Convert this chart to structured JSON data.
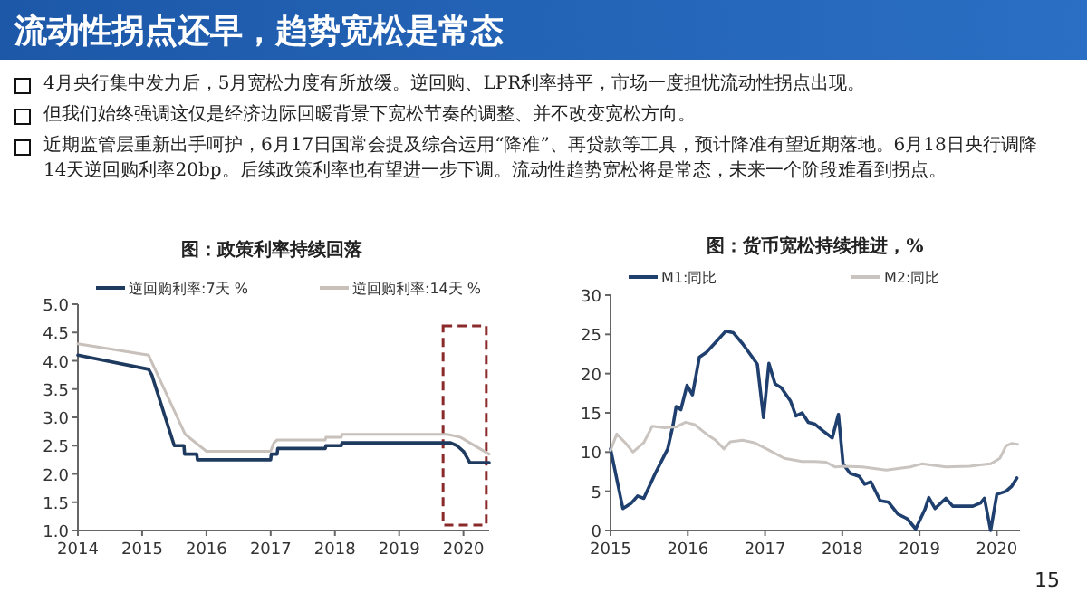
{
  "chart_data": [
    {
      "type": "other",
      "title": "流动性拐点还早，趋势宽松是常态",
      "annotations": [
        "4月央行集中发力后，5月宽松力度有所放缓。逆回购、LPR利率持平，市场一度担忧流动性拐点出现。",
        "但我们始终强调这仅是经济边际回暖背景下宽松节奏的调整、并不改变宽松方向。",
        "近期监管层重新出手呵护，6月17日国常会提及综合运用“降准”、再贷款等工具，预计降准有望近期落地。6月18日央行调降14天逆回购利率20bp。后续政策利率也有望进一步下调。流动性趋势宽松将是常态，未来一个阶段难看到拐点。"
      ]
    },
    {
      "type": "line",
      "title": "图：政策利率持续回落",
      "legend": "top",
      "marker": "none",
      "line_style": "solid",
      "grid": false,
      "xlim": [
        2014,
        2020.4
      ],
      "xticks": [
        2014,
        2015,
        2016,
        2017,
        2018,
        2019,
        2020
      ],
      "ylim": [
        1,
        5
      ],
      "yticks": [
        {
          "value": 1,
          "label": "1.0"
        },
        {
          "value": 1.5,
          "label": "1.5"
        },
        {
          "value": 2,
          "label": "2.0"
        },
        {
          "value": 2.5,
          "label": "2.5"
        },
        {
          "value": 3,
          "label": "3.0"
        },
        {
          "value": 3.5,
          "label": "3.5"
        },
        {
          "value": 4,
          "label": "4.0"
        },
        {
          "value": 4.5,
          "label": "4.5"
        },
        {
          "value": 5,
          "label": "5.0"
        }
      ],
      "series": [
        {
          "name": "逆回购利率:7天 %",
          "color": "#1f3a5f",
          "x": [
            2014,
            2015.1,
            2015.15,
            2015.5,
            2015.65,
            2015.66,
            2015.85,
            2015.86,
            2017.0,
            2017.01,
            2017.1,
            2017.11,
            2017.85,
            2017.86,
            2018.1,
            2018.11,
            2019.8,
            2019.9,
            2020.0,
            2020.1,
            2020.4
          ],
          "values": [
            4.1,
            3.85,
            3.75,
            2.5,
            2.5,
            2.35,
            2.35,
            2.25,
            2.25,
            2.35,
            2.35,
            2.45,
            2.45,
            2.5,
            2.5,
            2.55,
            2.55,
            2.5,
            2.4,
            2.2,
            2.2
          ]
        },
        {
          "name": "逆回购利率:14天 %",
          "color": "#c8c0bb",
          "x": [
            2014,
            2015.1,
            2015.67,
            2016.0,
            2017.0,
            2017.05,
            2017.1,
            2017.85,
            2017.86,
            2018.1,
            2018.11,
            2019.75,
            2019.95,
            2020.1,
            2020.4
          ],
          "values": [
            4.3,
            4.1,
            2.7,
            2.4,
            2.4,
            2.55,
            2.6,
            2.6,
            2.65,
            2.65,
            2.7,
            2.7,
            2.65,
            2.55,
            2.35
          ]
        }
      ]
    },
    {
      "type": "line",
      "title": "图：货币宽松持续推进，%",
      "legend": "top",
      "marker": "none",
      "line_style": "solid",
      "grid": false,
      "xlim": [
        2015,
        2020.3
      ],
      "xticks": [
        2015,
        2016,
        2017,
        2018,
        2019,
        2020
      ],
      "ylim": [
        0,
        30
      ],
      "yticks": [
        0,
        5,
        10,
        15,
        20,
        25,
        30
      ],
      "annotations": [
        "15"
      ],
      "series": [
        {
          "name": "M1:同比",
          "color": "#1f3f6e",
          "x": [
            2015.0,
            2015.16,
            2015.27,
            2015.35,
            2015.43,
            2015.58,
            2015.74,
            2015.81,
            2015.85,
            2015.91,
            2015.99,
            2016.06,
            2016.15,
            2016.24,
            2016.38,
            2016.49,
            2016.59,
            2016.71,
            2016.82,
            2016.9,
            2016.98,
            2017.05,
            2017.13,
            2017.21,
            2017.33,
            2017.4,
            2017.48,
            2017.56,
            2017.64,
            2017.75,
            2017.87,
            2017.95,
            2018.01,
            2018.1,
            2018.22,
            2018.29,
            2018.37,
            2018.49,
            2018.6,
            2018.72,
            2018.84,
            2018.95,
            2019.07,
            2019.12,
            2019.2,
            2019.34,
            2019.43,
            2019.57,
            2019.69,
            2019.79,
            2019.84,
            2019.92,
            2020.0,
            2020.12,
            2020.19,
            2020.26
          ],
          "values": [
            10.4,
            2.8,
            3.5,
            4.4,
            4.1,
            7.3,
            10.4,
            13.5,
            15.8,
            15.4,
            18.5,
            17.3,
            22.1,
            22.7,
            24.2,
            25.4,
            25.2,
            23.8,
            22.3,
            21.2,
            14.4,
            21.3,
            18.7,
            18.2,
            16.5,
            14.6,
            15.0,
            13.8,
            13.6,
            12.7,
            11.8,
            14.8,
            8.5,
            7.3,
            6.9,
            5.9,
            6.2,
            3.8,
            3.6,
            2.1,
            1.5,
            0.2,
            2.7,
            4.2,
            2.8,
            4.1,
            3.1,
            3.1,
            3.1,
            3.5,
            4.1,
            0.0,
            4.6,
            5.0,
            5.6,
            6.7
          ]
        },
        {
          "name": "M2:同比",
          "color": "#c9c4c0",
          "x": [
            2015.0,
            2015.08,
            2015.19,
            2015.29,
            2015.43,
            2015.54,
            2015.7,
            2015.85,
            2015.97,
            2016.09,
            2016.24,
            2016.36,
            2016.47,
            2016.55,
            2016.71,
            2016.86,
            2017.02,
            2017.25,
            2017.48,
            2017.64,
            2017.79,
            2017.91,
            2018.02,
            2018.26,
            2018.57,
            2018.88,
            2019.03,
            2019.34,
            2019.65,
            2019.81,
            2019.92,
            2020.04,
            2020.12,
            2020.19,
            2020.27
          ],
          "values": [
            10.2,
            12.3,
            11.2,
            10.0,
            11.2,
            13.3,
            13.1,
            13.2,
            13.8,
            13.5,
            12.3,
            11.5,
            10.4,
            11.3,
            11.5,
            11.2,
            10.4,
            9.2,
            8.8,
            8.8,
            8.7,
            8.1,
            8.2,
            8.1,
            7.7,
            8.1,
            8.5,
            8.1,
            8.2,
            8.4,
            8.5,
            9.2,
            10.8,
            11.1,
            11.0
          ]
        }
      ]
    }
  ]
}
